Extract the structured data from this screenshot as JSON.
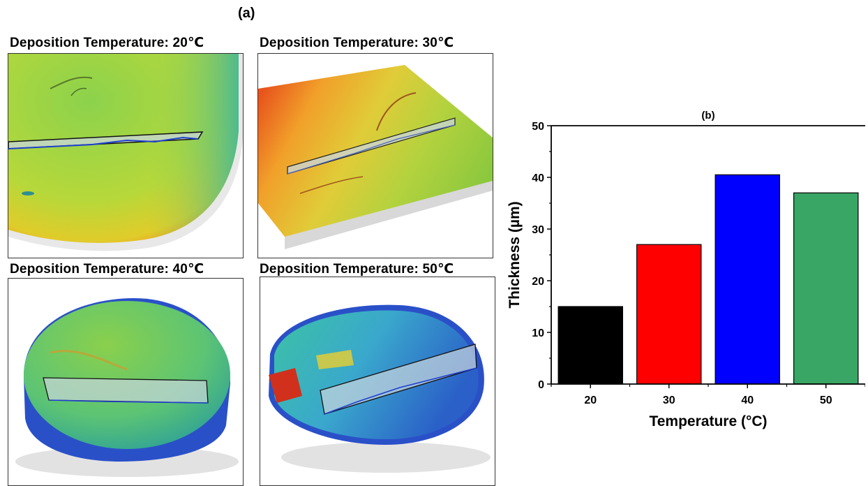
{
  "figure": {
    "label_a": "(a)",
    "panels": [
      {
        "title": "Deposition Temperature: 20℃"
      },
      {
        "title": "Deposition Temperature: 30℃"
      },
      {
        "title": "Deposition Temperature: 40℃"
      },
      {
        "title": "Deposition Temperature: 50℃"
      }
    ]
  },
  "chart_data": {
    "type": "bar",
    "title": "(b)",
    "xlabel": "Temperature (°C)",
    "ylabel": "Thickness (µm)",
    "categories": [
      "20",
      "30",
      "40",
      "50"
    ],
    "values": [
      15,
      27,
      40.5,
      37
    ],
    "colors": [
      "#000000",
      "#ff0000",
      "#0000ff",
      "#3aa665"
    ],
    "ylim": [
      0,
      50
    ],
    "yticks": [
      0,
      10,
      20,
      30,
      40,
      50
    ],
    "grid": false
  }
}
